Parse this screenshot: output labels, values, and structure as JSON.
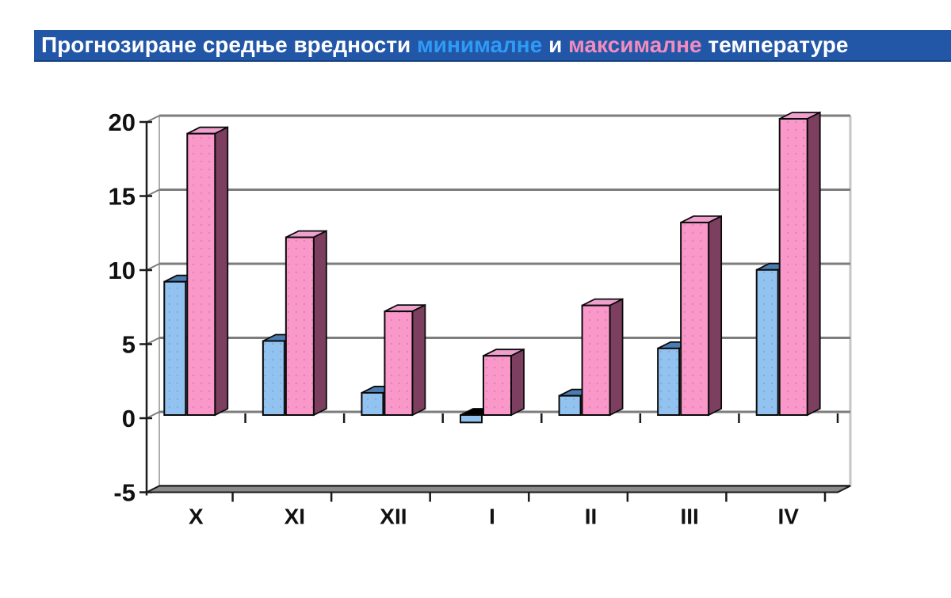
{
  "title_bar": {
    "part1": "Прогнозиране средње вредности ",
    "min_word": "минималне",
    "conj": " и ",
    "max_word": "максималне",
    "part3": " температуре"
  },
  "colors": {
    "title_bg": "#2256A7",
    "title_border": "#16407E",
    "title_text": "#FFFFFF",
    "min_word": "#2E9BF5",
    "max_word": "#F28CBE",
    "bar_min_front": "#92C3F0",
    "bar_min_top": "#4A7CB0",
    "bar_max_front": "#F998C9",
    "bar_max_top": "#EFA0CD",
    "bar_max_side": "#7C3F60",
    "negative_top": "#000000",
    "gridline": "#7D7D7D",
    "axis": "#1A1A1A",
    "floor": "#8A8A8A",
    "wall_left": "#9A9A9A",
    "wall_right": "#C6C6C6",
    "label_color": "#111111"
  },
  "chart_data": {
    "type": "bar",
    "bar_style": "3d-column",
    "title": "Прогнозиране средње вредности минималне и максималне температуре",
    "categories": [
      "X",
      "XI",
      "XII",
      "I",
      "II",
      "III",
      "IV"
    ],
    "series": [
      {
        "name": "минималне",
        "values": [
          9,
          5,
          1.5,
          -0.5,
          1.3,
          4.5,
          9.8
        ]
      },
      {
        "name": "максималне",
        "values": [
          19,
          12,
          7,
          4,
          7.4,
          13,
          20
        ]
      }
    ],
    "xlabel": "",
    "ylabel": "",
    "ylim": [
      -5,
      20
    ],
    "yticks": [
      20,
      15,
      10,
      5,
      0,
      -5
    ],
    "grid": true,
    "legend": "none (series identified by colored words in title)"
  }
}
